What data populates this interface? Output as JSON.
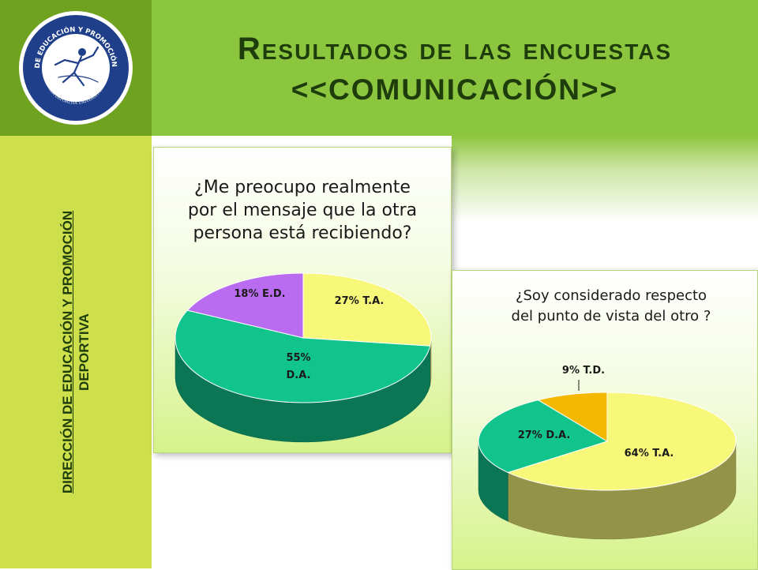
{
  "header": {
    "title_line1": "Resultados de las encuestas",
    "title_line2": "<<COMUNICACIÓN>>"
  },
  "logo": {
    "text": "DIRECCIÓN DE EDUCACIÓN Y PROMOCIÓN DEPORTIVA",
    "subtext": "VILLA DEPORTIVA UNIVERSITARIA"
  },
  "sidebar": {
    "line1": "DIRECCIÓN DE EDUCACIÓN Y PROMOCIÓN",
    "line2": "DEPORTIVA"
  },
  "colors": {
    "yellow": "#f7f77a",
    "green": "#11c48c",
    "purple": "#b96cf0",
    "orange": "#f5b800",
    "header": "#8cc63f",
    "sidebar": "#cde04c"
  },
  "chart_data": [
    {
      "type": "pie",
      "title": "¿Me preocupo realmente por el mensaje que la otra persona está recibiendo?",
      "title_lines": [
        "¿Me preocupo realmente",
        "por el mensaje que la otra",
        "persona está recibiendo?"
      ],
      "slices": [
        {
          "label": "27% T.A.",
          "value": 27,
          "color": "#f7f77a"
        },
        {
          "label": "55% D.A.",
          "value": 55,
          "color": "#11c48c"
        },
        {
          "label": "18% E.D.",
          "value": 18,
          "color": "#b96cf0"
        }
      ]
    },
    {
      "type": "pie",
      "title": "¿Soy considerado respecto del punto de vista del otro ?",
      "title_lines": [
        "¿Soy considerado respecto",
        "del punto de vista del otro ?"
      ],
      "slices": [
        {
          "label": "64% T.A.",
          "value": 64,
          "color": "#f7f77a"
        },
        {
          "label": "27% D.A.",
          "value": 27,
          "color": "#11c48c"
        },
        {
          "label": "9% T.D.",
          "value": 9,
          "color": "#f5b800"
        }
      ]
    }
  ]
}
